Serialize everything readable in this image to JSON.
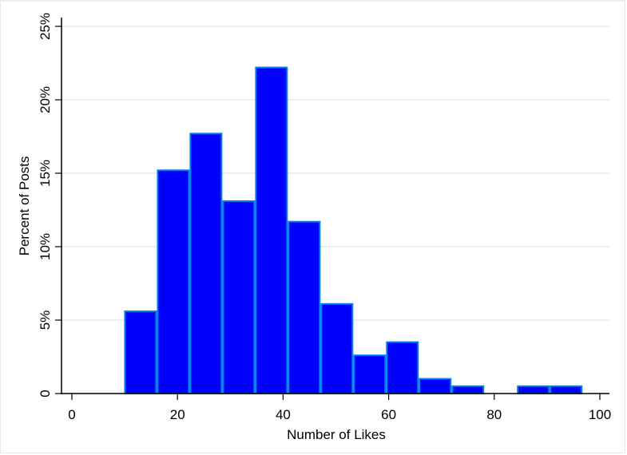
{
  "chart_data": {
    "type": "bar",
    "subtype": "histogram",
    "title": "",
    "xlabel": "Number of Likes",
    "ylabel": "Percent of Posts",
    "xlim": [
      0,
      100
    ],
    "ylim": [
      0,
      25
    ],
    "x_ticks": [
      0,
      20,
      40,
      60,
      80,
      100
    ],
    "y_ticks": [
      "0",
      "5%",
      "10%",
      "15%",
      "20%",
      "25%"
    ],
    "y_tick_values": [
      0,
      5,
      10,
      15,
      20,
      25
    ],
    "grid": "horizontal",
    "bin_width": 6.2,
    "bins": [
      {
        "start": 9.9,
        "end": 16.1,
        "value": 5.6
      },
      {
        "start": 16.1,
        "end": 22.3,
        "value": 15.2
      },
      {
        "start": 22.3,
        "end": 28.5,
        "value": 17.7
      },
      {
        "start": 28.5,
        "end": 34.7,
        "value": 13.1
      },
      {
        "start": 34.7,
        "end": 40.9,
        "value": 22.2
      },
      {
        "start": 40.9,
        "end": 47.1,
        "value": 11.7
      },
      {
        "start": 47.1,
        "end": 53.3,
        "value": 6.1
      },
      {
        "start": 53.3,
        "end": 59.5,
        "value": 2.6
      },
      {
        "start": 59.5,
        "end": 65.7,
        "value": 3.5
      },
      {
        "start": 65.7,
        "end": 71.9,
        "value": 1.0
      },
      {
        "start": 71.9,
        "end": 78.1,
        "value": 0.5
      },
      {
        "start": 78.1,
        "end": 84.3,
        "value": 0
      },
      {
        "start": 84.3,
        "end": 90.5,
        "value": 0.5
      },
      {
        "start": 90.5,
        "end": 96.7,
        "value": 0.5
      }
    ],
    "colors": {
      "bar_fill": "#0000ff",
      "bar_edge": "#0080f0",
      "grid": "#eaeff2",
      "axis": "#000000"
    }
  }
}
